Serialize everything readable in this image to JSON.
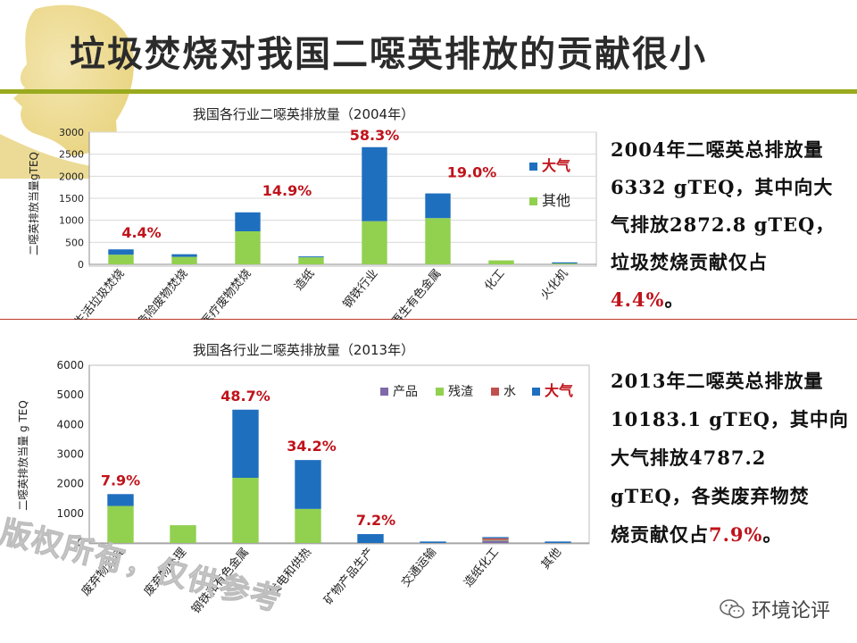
{
  "slide": {
    "title": "垃圾焚烧对我国二噁英排放的贡献很小"
  },
  "notes": {
    "top_lines": [
      "2004年二噁英总排放量",
      "6332 gTEQ，其中向大",
      "气排放2872.8 gTEQ，",
      "垃圾焚烧贡献仅占"
    ],
    "top_highlight": "4.4%",
    "top_suffix": "。",
    "bottom_lines": [
      "2013年二噁英总排放量",
      "10183.1 gTEQ，其中向",
      "大气排放4787.2",
      "gTEQ，各类废弃物焚"
    ],
    "bottom_last_prefix": "烧贡献仅占",
    "bottom_highlight": "7.9%",
    "bottom_suffix": "。"
  },
  "watermark": {
    "text": "版权所有，仅供参考"
  },
  "wechat": {
    "label": "环境论评"
  },
  "colors": {
    "air": "#1f6fbf",
    "other": "#92d050",
    "product": "#7f6aa8",
    "water": "#c0504d",
    "highlight": "#c0131b",
    "accent_bar": "#9aaa1e"
  },
  "chart_data": [
    {
      "type": "bar",
      "stacked": true,
      "title": "我国各行业二噁英排放量（2004年）",
      "ylabel": "二噁英排放当量gTEQ",
      "ylim": [
        0,
        3000
      ],
      "yticks": [
        0,
        500,
        1000,
        1500,
        2000,
        2500,
        3000
      ],
      "categories": [
        "生活垃圾焚烧",
        "危险废物焚烧",
        "医疗废物焚烧",
        "造纸",
        "钢铁行业",
        "再生有色金属",
        "化工",
        "火化机"
      ],
      "series": [
        {
          "name": "其他",
          "color": "#92d050",
          "values": [
            220,
            170,
            750,
            160,
            980,
            1050,
            90,
            20
          ]
        },
        {
          "name": "大气",
          "color": "#1f6fbf",
          "values": [
            120,
            60,
            430,
            20,
            1680,
            560,
            0,
            25
          ]
        }
      ],
      "annotations": [
        {
          "category": "生活垃圾焚烧",
          "text": "4.4%"
        },
        {
          "category": "医疗废物焚烧",
          "text": "14.9%"
        },
        {
          "category": "钢铁行业",
          "text": "58.3%"
        },
        {
          "category": "再生有色金属",
          "text": "19.0%"
        }
      ],
      "legend": "right",
      "legend_entries": [
        "大气",
        "其他"
      ],
      "grid": true
    },
    {
      "type": "bar",
      "stacked": true,
      "title": "我国各行业二噁英排放量（2013年）",
      "ylabel": "二噁英排放当量 g TEQ",
      "ylim": [
        0,
        6000
      ],
      "yticks": [
        0,
        1000,
        2000,
        3000,
        4000,
        5000,
        6000
      ],
      "categories": [
        "废弃物焚烧",
        "废弃物处理",
        "钢铁和有色金属",
        "发电和供热",
        "矿物产品生产",
        "交通运输",
        "造纸化工",
        "其他"
      ],
      "series": [
        {
          "name": "产品",
          "color": "#7f6aa8",
          "values": [
            0,
            0,
            0,
            0,
            0,
            0,
            80,
            0
          ]
        },
        {
          "name": "残渣",
          "color": "#92d050",
          "values": [
            1250,
            600,
            2200,
            1150,
            0,
            0,
            20,
            0
          ]
        },
        {
          "name": "水",
          "color": "#c0504d",
          "values": [
            0,
            0,
            0,
            0,
            0,
            0,
            60,
            0
          ]
        },
        {
          "name": "大气",
          "color": "#1f6fbf",
          "values": [
            400,
            0,
            2300,
            1650,
            300,
            50,
            40,
            50
          ]
        }
      ],
      "annotations": [
        {
          "category": "废弃物焚烧",
          "text": "7.9%"
        },
        {
          "category": "钢铁和有色金属",
          "text": "48.7%"
        },
        {
          "category": "发电和供热",
          "text": "34.2%"
        },
        {
          "category": "矿物产品生产",
          "text": "7.2%"
        }
      ],
      "legend": "top-right",
      "legend_entries": [
        "产品",
        "残渣",
        "水",
        "大气"
      ],
      "grid": false
    }
  ]
}
